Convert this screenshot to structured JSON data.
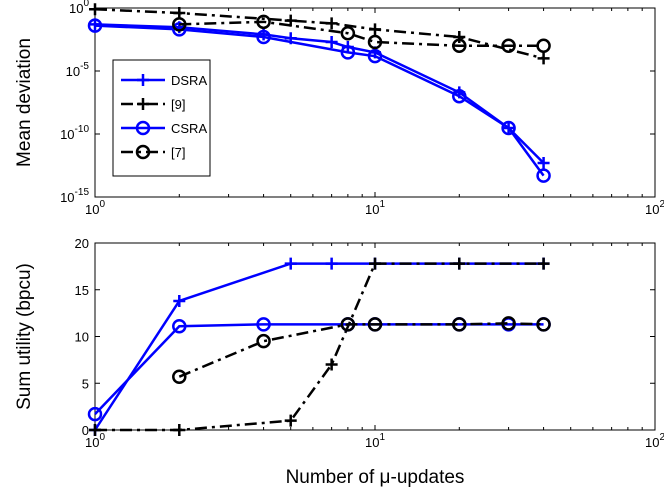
{
  "chart_data": [
    {
      "type": "line",
      "ylabel": "Mean deviation",
      "xscale": "log",
      "yscale": "log",
      "xlim": [
        1,
        100
      ],
      "ylim": [
        1e-15,
        1
      ],
      "xticks": [
        {
          "value": 1,
          "label": "10",
          "exponent": "0"
        },
        {
          "value": 10,
          "label": "10",
          "exponent": "1"
        },
        {
          "value": 100,
          "label": "10",
          "exponent": "2"
        }
      ],
      "yticks": [
        {
          "value": 1e-15,
          "label": "10",
          "exponent": "-15"
        },
        {
          "value": 1e-10,
          "label": "10",
          "exponent": "-10"
        },
        {
          "value": 1e-05,
          "label": "10",
          "exponent": "-5"
        },
        {
          "value": 1,
          "label": "10",
          "exponent": "0"
        }
      ],
      "legend": "upper left",
      "series": [
        {
          "name": "DSRA",
          "color": "#0000ff",
          "marker": "plus",
          "linestyle": "solid",
          "x": [
            1,
            2,
            4,
            5,
            7,
            8,
            10,
            20,
            30,
            40
          ],
          "values": [
            0.05,
            0.03,
            0.008,
            0.004,
            0.002,
            0.0008,
            0.0003,
            2e-07,
            3e-10,
            5e-13
          ]
        },
        {
          "name": "[9]",
          "color": "#000000",
          "marker": "plus",
          "linestyle": "dashdot",
          "x": [
            1,
            2,
            5,
            7,
            10,
            20,
            40
          ],
          "values": [
            0.8,
            0.4,
            0.1,
            0.06,
            0.02,
            0.005,
            0.0001
          ]
        },
        {
          "name": "CSRA",
          "color": "#0000ff",
          "marker": "circle",
          "linestyle": "solid",
          "x": [
            1,
            2,
            4,
            8,
            10,
            20,
            30,
            40
          ],
          "values": [
            0.04,
            0.02,
            0.005,
            0.0003,
            0.00015,
            1e-07,
            3e-10,
            5e-14
          ]
        },
        {
          "name": "[7]",
          "color": "#000000",
          "marker": "circle",
          "linestyle": "dashdot",
          "x": [
            2,
            4,
            8,
            10,
            20,
            30,
            40
          ],
          "values": [
            0.05,
            0.08,
            0.01,
            0.002,
            0.001,
            0.001,
            0.001
          ]
        }
      ]
    },
    {
      "type": "line",
      "ylabel": "Sum utility (bpcu)",
      "xlabel": "Number of μ-updates",
      "xscale": "log",
      "xlim": [
        1,
        100
      ],
      "ylim": [
        0,
        20
      ],
      "xticks": [
        {
          "value": 1,
          "label": "10",
          "exponent": "0"
        },
        {
          "value": 10,
          "label": "10",
          "exponent": "1"
        },
        {
          "value": 100,
          "label": "10",
          "exponent": "2"
        }
      ],
      "yticks": [
        0,
        5,
        10,
        15,
        20
      ],
      "series": [
        {
          "name": "DSRA",
          "color": "#0000ff",
          "marker": "plus",
          "linestyle": "solid",
          "x": [
            1,
            2,
            5,
            7,
            10,
            20,
            40
          ],
          "values": [
            0,
            13.8,
            17.8,
            17.8,
            17.8,
            17.8,
            17.8
          ]
        },
        {
          "name": "[9]",
          "color": "#000000",
          "marker": "plus",
          "linestyle": "dashdot",
          "x": [
            1,
            2,
            5,
            7,
            10,
            20,
            40
          ],
          "values": [
            0,
            0,
            1,
            7,
            17.8,
            17.8,
            17.8
          ]
        },
        {
          "name": "CSRA",
          "color": "#0000ff",
          "marker": "circle",
          "linestyle": "solid",
          "x": [
            1,
            2,
            4,
            8,
            10,
            20,
            30,
            40
          ],
          "values": [
            1.7,
            11.1,
            11.3,
            11.3,
            11.3,
            11.3,
            11.3,
            11.3
          ]
        },
        {
          "name": "[7]",
          "color": "#000000",
          "marker": "circle",
          "linestyle": "dashdot",
          "x": [
            2,
            4,
            8,
            10,
            20,
            30,
            40
          ],
          "values": [
            5.7,
            9.5,
            11.3,
            11.3,
            11.3,
            11.4,
            11.3
          ]
        }
      ]
    }
  ]
}
